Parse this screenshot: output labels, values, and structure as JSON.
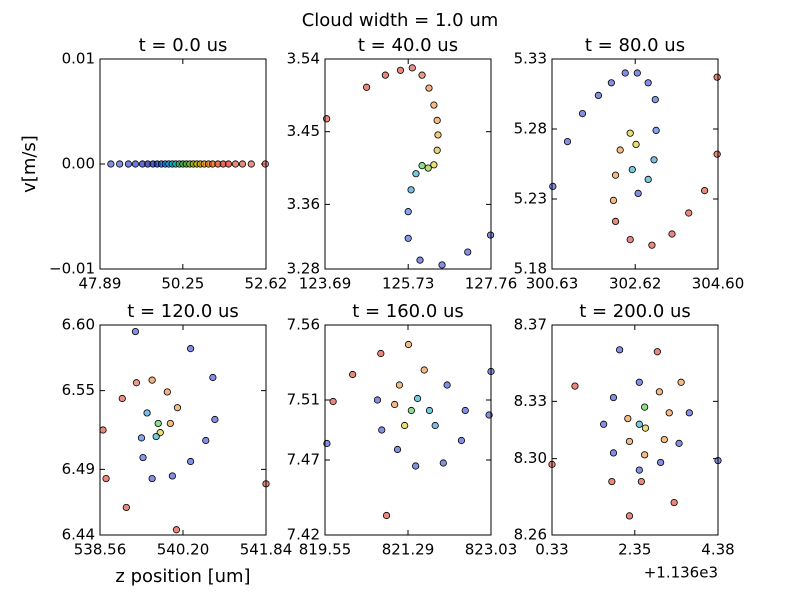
{
  "title": "Cloud width = 1.0 um",
  "chart_data": [
    {
      "type": "scatter",
      "title": "t = 0.0 us",
      "ylabel": "v[m/s]",
      "x": [
        48.2,
        48.45,
        48.7,
        48.9,
        49.1,
        49.25,
        49.4,
        49.52,
        49.64,
        49.75,
        49.85,
        49.95,
        50.05,
        50.15,
        50.25,
        50.35,
        50.45,
        50.55,
        50.65,
        50.75,
        50.86,
        50.98,
        51.1,
        51.25,
        51.4,
        51.55,
        51.75,
        51.95,
        52.2,
        52.6
      ],
      "y": [
        0,
        0,
        0,
        0,
        0,
        0,
        0,
        0,
        0,
        0,
        0,
        0,
        0,
        0,
        0,
        0,
        0,
        0,
        0,
        0,
        0,
        0,
        0,
        0,
        0,
        0,
        0,
        0,
        0,
        0
      ],
      "colors": [
        "#4f5fd7",
        "#4f5fd7",
        "#4050d0",
        "#3040c8",
        "#2030c0",
        "#1020b0",
        "#1020b0",
        "#0030c0",
        "#0050d0",
        "#0070e0",
        "#0090e0",
        "#00a8d0",
        "#10b8a0",
        "#20b070",
        "#30a830",
        "#50b020",
        "#80b810",
        "#a0b800",
        "#c0b000",
        "#d0a000",
        "#e08800",
        "#e07000",
        "#e05800",
        "#e04000",
        "#d83020",
        "#d83020",
        "#e05545",
        "#e05545",
        "#e06050",
        "#e06050"
      ],
      "xlim": [
        47.89,
        52.62
      ],
      "xticks": [
        47.89,
        50.25,
        52.62
      ],
      "ylim": [
        -0.01,
        0.01
      ],
      "yticks": [
        {
          "value": -0.01,
          "label": "−0.01"
        },
        {
          "value": 0,
          "label": "0.00"
        },
        0.01
      ]
    },
    {
      "type": "scatter",
      "title": "t = 40.0 us",
      "x": [
        127.75,
        127.19,
        126.56,
        126.02,
        125.73,
        125.73,
        125.8,
        125.92,
        126.07,
        126.22,
        126.36,
        126.44,
        126.46,
        126.44,
        126.36,
        126.24,
        126.07,
        125.83,
        125.54,
        125.17,
        124.71,
        123.73
      ],
      "y": [
        3.322,
        3.301,
        3.285,
        3.291,
        3.318,
        3.351,
        3.378,
        3.398,
        3.408,
        3.405,
        3.409,
        3.427,
        3.446,
        3.464,
        3.483,
        3.504,
        3.52,
        3.529,
        3.526,
        3.52,
        3.505,
        3.466
      ],
      "colors": [
        "#4f5fd7",
        "#4f5fd7",
        "#4f5fd7",
        "#4f5fd7",
        "#4f6fe0",
        "#4f80e8",
        "#40a0e0",
        "#40b0d0",
        "#60d060",
        "#a0d040",
        "#e0d040",
        "#e0c040",
        "#f0b050",
        "#f0a050",
        "#f0a050",
        "#f09050",
        "#e07050",
        "#e06050",
        "#e05545",
        "#e05545",
        "#e05545",
        "#e05545"
      ],
      "xlim": [
        123.69,
        127.76
      ],
      "xticks": [
        123.69,
        125.73,
        127.76
      ],
      "ylim": [
        3.28,
        3.54
      ],
      "yticks": [
        3.28,
        3.36,
        3.45,
        3.54
      ]
    },
    {
      "type": "scatter",
      "title": "t = 80.0 us",
      "x": [
        300.65,
        301.0,
        301.36,
        301.74,
        302.05,
        302.38,
        302.67,
        302.93,
        303.1,
        303.12,
        303.07,
        302.93,
        302.69,
        302.55,
        302.64,
        302.5,
        302.26,
        302.15,
        302.1,
        302.15,
        302.5,
        303.02,
        303.5,
        303.9,
        304.28,
        304.58,
        304.58
      ],
      "y": [
        5.239,
        5.271,
        5.291,
        5.304,
        5.313,
        5.32,
        5.32,
        5.313,
        5.301,
        5.279,
        5.258,
        5.244,
        5.234,
        5.251,
        5.269,
        5.277,
        5.265,
        5.247,
        5.229,
        5.214,
        5.201,
        5.197,
        5.205,
        5.22,
        5.236,
        5.262,
        5.317
      ],
      "colors": [
        "#4f5fd7",
        "#4f5fd7",
        "#4f5fd7",
        "#4f5fd7",
        "#4f5fd7",
        "#4f5fd7",
        "#4f5fd7",
        "#4f5fd7",
        "#4f6fe0",
        "#4f80e8",
        "#40a0e0",
        "#40b0d0",
        "#4f5fd7",
        "#40b0d0",
        "#e0d040",
        "#e0d040",
        "#f0a050",
        "#f0a050",
        "#f0a050",
        "#e05545",
        "#e05545",
        "#e05545",
        "#e05545",
        "#e05545",
        "#e05545",
        "#e05545",
        "#e05545"
      ],
      "xlim": [
        300.63,
        304.6
      ],
      "xticks": [
        300.63,
        302.62,
        {
          "value": 304.6,
          "label": "304.60"
        }
      ],
      "ylim": [
        5.18,
        5.33
      ],
      "yticks": [
        5.18,
        5.23,
        5.28,
        5.33
      ]
    },
    {
      "type": "scatter",
      "title": "t = 120.0 us",
      "xlabel": "z position [um]",
      "x": [
        539.26,
        540.35,
        540.79,
        540.83,
        540.65,
        540.35,
        539.99,
        539.59,
        539.41,
        539.38,
        539.49,
        539.71,
        539.75,
        539.67,
        539.95,
        540.09,
        539.89,
        539.59,
        539.28,
        539.0,
        538.62,
        538.68,
        539.08,
        540.07,
        541.84
      ],
      "y": [
        6.595,
        6.582,
        6.56,
        6.528,
        6.512,
        6.496,
        6.485,
        6.483,
        6.499,
        6.514,
        6.533,
        6.525,
        6.518,
        6.515,
        6.525,
        6.537,
        6.549,
        6.558,
        6.556,
        6.544,
        6.52,
        6.483,
        6.461,
        6.444,
        6.479
      ],
      "colors": [
        "#4f5fd7",
        "#4f5fd7",
        "#4f5fd7",
        "#4f5fd7",
        "#4f5fd7",
        "#4f5fd7",
        "#4f5fd7",
        "#4f5fd7",
        "#4f6fe0",
        "#4f80e8",
        "#40a0e0",
        "#60d060",
        "#e0d040",
        "#40b0d0",
        "#f0a050",
        "#f0a050",
        "#f09050",
        "#f09050",
        "#e07050",
        "#e06050",
        "#e05545",
        "#e05545",
        "#e05545",
        "#e05545",
        "#e05545"
      ],
      "xlim": [
        538.56,
        541.84
      ],
      "xticks": [
        538.56,
        {
          "value": 540.2,
          "label": "540.20"
        },
        541.84
      ],
      "ylim": [
        6.44,
        6.6
      ],
      "yticks": [
        6.44,
        6.49,
        6.55,
        {
          "value": 6.6,
          "label": "6.60"
        }
      ]
    },
    {
      "type": "scatter",
      "title": "t = 160.0 us",
      "x": [
        819.59,
        820.72,
        820.13,
        819.72,
        821.3,
        820.84,
        820.65,
        820.74,
        821.07,
        821.45,
        822.03,
        822.41,
        822.49,
        822.11,
        821.63,
        821.11,
        821.01,
        821.22,
        821.36,
        821.49,
        821.74,
        821.86,
        822.99,
        823.03
      ],
      "y": [
        7.481,
        7.541,
        7.527,
        7.509,
        7.547,
        7.433,
        7.51,
        7.49,
        7.477,
        7.466,
        7.468,
        7.483,
        7.503,
        7.52,
        7.53,
        7.52,
        7.507,
        7.493,
        7.503,
        7.511,
        7.503,
        7.493,
        7.5,
        7.529
      ],
      "colors": [
        "#4f5fd7",
        "#e05545",
        "#e05545",
        "#e05545",
        "#f0a050",
        "#e05545",
        "#4f5fd7",
        "#4f5fd7",
        "#4f5fd7",
        "#4f5fd7",
        "#4f5fd7",
        "#4f5fd7",
        "#4f5fd7",
        "#4f5fd7",
        "#f0a050",
        "#f0a050",
        "#f0a050",
        "#e0d040",
        "#60d060",
        "#40b0d0",
        "#40b0d0",
        "#40a0e0",
        "#4f5fd7",
        "#4f5fd7"
      ],
      "xlim": [
        819.55,
        823.03
      ],
      "xticks": [
        819.55,
        821.29,
        823.03
      ],
      "ylim": [
        7.42,
        7.56
      ],
      "yticks": [
        7.42,
        7.47,
        7.51,
        7.56
      ]
    },
    {
      "type": "scatter",
      "title": "t = 200.0 us",
      "x_offset_label": "+1.136e3",
      "x": [
        0.33,
        0.89,
        1.98,
        2.9,
        3.48,
        3.68,
        3.43,
        2.98,
        2.46,
        1.83,
        1.59,
        1.83,
        2.46,
        2.95,
        3.19,
        3.07,
        2.59,
        2.22,
        2.18,
        2.59,
        2.61,
        2.46,
        1.79,
        2.51,
        3.31,
        2.22,
        4.38
      ],
      "y": [
        8.297,
        8.338,
        8.357,
        8.356,
        8.34,
        8.324,
        8.308,
        8.298,
        8.294,
        8.303,
        8.318,
        8.332,
        8.34,
        8.335,
        8.324,
        8.31,
        8.302,
        8.309,
        8.321,
        8.327,
        8.316,
        8.318,
        8.288,
        8.288,
        8.277,
        8.27,
        8.299
      ],
      "colors": [
        "#e05545",
        "#e05545",
        "#4f5fd7",
        "#e05545",
        "#f0a050",
        "#4f5fd7",
        "#4f5fd7",
        "#4f5fd7",
        "#4f5fd7",
        "#4f5fd7",
        "#4f5fd7",
        "#4f5fd7",
        "#4f5fd7",
        "#f0a050",
        "#f0a050",
        "#f0a050",
        "#f0a050",
        "#f0a050",
        "#f0a050",
        "#60d060",
        "#e0d040",
        "#40b0d0",
        "#e05545",
        "#e05545",
        "#e05545",
        "#e05545",
        "#4f5fd7"
      ],
      "xlim": [
        0.33,
        4.38
      ],
      "xticks": [
        0.33,
        2.35,
        4.38
      ],
      "ylim": [
        8.26,
        8.37
      ],
      "yticks": [
        8.26,
        {
          "value": 8.3,
          "label": "8.30"
        },
        8.33,
        8.37
      ]
    }
  ]
}
